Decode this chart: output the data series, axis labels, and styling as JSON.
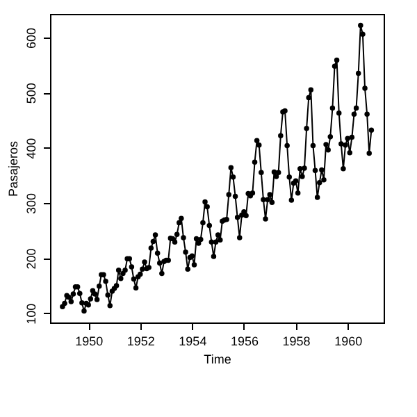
{
  "chart_data": {
    "type": "line",
    "xlabel": "Time",
    "ylabel": "Pasajeros",
    "x": [
      1949,
      1949.083,
      1949.167,
      1949.25,
      1949.333,
      1949.417,
      1949.5,
      1949.583,
      1949.667,
      1949.75,
      1949.833,
      1949.917,
      1950,
      1950.083,
      1950.167,
      1950.25,
      1950.333,
      1950.417,
      1950.5,
      1950.583,
      1950.667,
      1950.75,
      1950.833,
      1950.917,
      1951,
      1951.083,
      1951.167,
      1951.25,
      1951.333,
      1951.417,
      1951.5,
      1951.583,
      1951.667,
      1951.75,
      1951.833,
      1951.917,
      1952,
      1952.083,
      1952.167,
      1952.25,
      1952.333,
      1952.417,
      1952.5,
      1952.583,
      1952.667,
      1952.75,
      1952.833,
      1952.917,
      1953,
      1953.083,
      1953.167,
      1953.25,
      1953.333,
      1953.417,
      1953.5,
      1953.583,
      1953.667,
      1953.75,
      1953.833,
      1953.917,
      1954,
      1954.083,
      1954.167,
      1954.25,
      1954.333,
      1954.417,
      1954.5,
      1954.583,
      1954.667,
      1954.75,
      1954.833,
      1954.917,
      1955,
      1955.083,
      1955.167,
      1955.25,
      1955.333,
      1955.417,
      1955.5,
      1955.583,
      1955.667,
      1955.75,
      1955.833,
      1955.917,
      1956,
      1956.083,
      1956.167,
      1956.25,
      1956.333,
      1956.417,
      1956.5,
      1956.583,
      1956.667,
      1956.75,
      1956.833,
      1956.917,
      1957,
      1957.083,
      1957.167,
      1957.25,
      1957.333,
      1957.417,
      1957.5,
      1957.583,
      1957.667,
      1957.75,
      1957.833,
      1957.917,
      1958,
      1958.083,
      1958.167,
      1958.25,
      1958.333,
      1958.417,
      1958.5,
      1958.583,
      1958.667,
      1958.75,
      1958.833,
      1958.917,
      1959,
      1959.083,
      1959.167,
      1959.25,
      1959.333,
      1959.417,
      1959.5,
      1959.583,
      1959.667,
      1959.75,
      1959.833,
      1959.917,
      1960,
      1960.083,
      1960.167,
      1960.25,
      1960.333,
      1960.417,
      1960.5,
      1960.583,
      1960.667,
      1960.75,
      1960.833,
      1960.917
    ],
    "series": [
      {
        "color": "#000000",
        "values": [
          112,
          118,
          132,
          129,
          121,
          135,
          148,
          148,
          136,
          119,
          104,
          118,
          115,
          126,
          141,
          135,
          125,
          149,
          170,
          170,
          158,
          133,
          114,
          140,
          145,
          150,
          178,
          163,
          172,
          178,
          199,
          199,
          184,
          162,
          146,
          166,
          171,
          180,
          193,
          181,
          183,
          218,
          230,
          242,
          209,
          191,
          172,
          194,
          196,
          196,
          236,
          235,
          229,
          243,
          264,
          272,
          237,
          211,
          180,
          201,
          204,
          188,
          235,
          227,
          234,
          264,
          302,
          293,
          259,
          229,
          203,
          229,
          242,
          233,
          267,
          269,
          270,
          315,
          364,
          347,
          312,
          274,
          237,
          278,
          284,
          277,
          317,
          313,
          318,
          374,
          413,
          405,
          355,
          306,
          271,
          306,
          315,
          301,
          356,
          348,
          355,
          422,
          465,
          467,
          404,
          347,
          305,
          336,
          340,
          318,
          362,
          348,
          363,
          435,
          491,
          505,
          404,
          359,
          310,
          337,
          360,
          342,
          406,
          396,
          420,
          472,
          548,
          559,
          463,
          407,
          362,
          405,
          417,
          391,
          419,
          461,
          472,
          535,
          622,
          606,
          508,
          461,
          390,
          432
        ]
      }
    ],
    "xlim": [
      1948.52,
      1961.39
    ],
    "ylim": [
      83.3,
      642.7
    ],
    "xticks": [
      1950,
      1952,
      1954,
      1956,
      1958,
      1960
    ],
    "yticks": [
      100,
      200,
      300,
      400,
      500,
      600
    ],
    "grid": false,
    "marker": "circle",
    "line_style": "solid"
  }
}
